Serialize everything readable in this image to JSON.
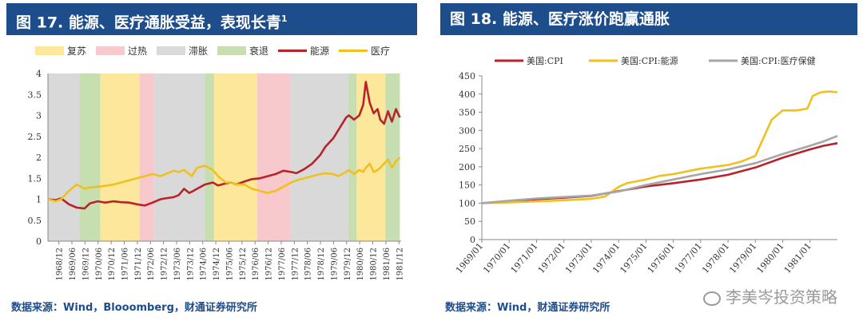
{
  "left": {
    "title": "图 17. 能源、医疗通胀受益，表现长青",
    "title_sup": "1",
    "source": "数据来源：Wind，Blooomberg，财通证券研究所",
    "chart_data": {
      "type": "line",
      "legend_position": "top",
      "legend": [
        {
          "name": "复苏",
          "color": "#fde79a",
          "kind": "band"
        },
        {
          "name": "过热",
          "color": "#f7c8cc",
          "kind": "band"
        },
        {
          "name": "滞胀",
          "color": "#d9d9d9",
          "kind": "band"
        },
        {
          "name": "衰退",
          "color": "#c7deb1",
          "kind": "band"
        },
        {
          "name": "能源",
          "color": "#b8232a",
          "kind": "line"
        },
        {
          "name": "医疗",
          "color": "#f0c020",
          "kind": "line"
        }
      ],
      "x_range": [
        1968.5,
        1982.0
      ],
      "ylim": [
        0,
        4
      ],
      "y_ticks": [
        "0",
        "0.5",
        "1",
        "1.5",
        "2",
        "2.5",
        "3",
        "3.5",
        "4"
      ],
      "x_ticks": [
        "1968/12",
        "1969/06",
        "1969/12",
        "1970/06",
        "1970/12",
        "1971/06",
        "1971/12",
        "1972/06",
        "1972/12",
        "1973/06",
        "1973/12",
        "1974/06",
        "1974/12",
        "1975/06",
        "1975/12",
        "1976/06",
        "1976/12",
        "1977/06",
        "1977/12",
        "1978/06",
        "1978/12",
        "1979/06",
        "1979/12",
        "1980/06",
        "1980/12",
        "1981/06",
        "1981/12"
      ],
      "phases": [
        {
          "phase": "滞胀",
          "start": 1968.5,
          "end": 1969.7
        },
        {
          "phase": "衰退",
          "start": 1969.7,
          "end": 1970.5
        },
        {
          "phase": "复苏",
          "start": 1970.5,
          "end": 1972.0
        },
        {
          "phase": "过热",
          "start": 1972.0,
          "end": 1972.55
        },
        {
          "phase": "滞胀",
          "start": 1972.55,
          "end": 1974.5
        },
        {
          "phase": "衰退",
          "start": 1974.5,
          "end": 1974.85
        },
        {
          "phase": "复苏",
          "start": 1974.85,
          "end": 1976.5
        },
        {
          "phase": "过热",
          "start": 1976.5,
          "end": 1977.75
        },
        {
          "phase": "滞胀",
          "start": 1977.75,
          "end": 1980.0
        },
        {
          "phase": "衰退",
          "start": 1980.0,
          "end": 1980.3
        },
        {
          "phase": "复苏",
          "start": 1980.3,
          "end": 1981.4
        },
        {
          "phase": "衰退",
          "start": 1981.4,
          "end": 1981.95
        }
      ],
      "series": [
        {
          "name": "能源",
          "color": "#b8232a",
          "x": [
            1968.5,
            1968.8,
            1969.0,
            1969.3,
            1969.6,
            1969.9,
            1970.1,
            1970.4,
            1970.7,
            1971.0,
            1971.3,
            1971.6,
            1971.9,
            1972.2,
            1972.5,
            1972.8,
            1973.0,
            1973.3,
            1973.5,
            1973.7,
            1973.9,
            1974.0,
            1974.2,
            1974.5,
            1974.8,
            1975.0,
            1975.3,
            1975.5,
            1975.7,
            1976.0,
            1976.3,
            1976.6,
            1976.9,
            1977.2,
            1977.5,
            1977.8,
            1978.0,
            1978.3,
            1978.6,
            1978.9,
            1979.1,
            1979.4,
            1979.6,
            1979.9,
            1980.0,
            1980.2,
            1980.4,
            1980.55,
            1980.65,
            1980.8,
            1980.95,
            1981.1,
            1981.2,
            1981.35,
            1981.5,
            1981.65,
            1981.8,
            1981.95
          ],
          "y": [
            1.0,
            0.98,
            1.02,
            0.88,
            0.8,
            0.78,
            0.9,
            0.95,
            0.92,
            0.95,
            0.93,
            0.92,
            0.88,
            0.85,
            0.92,
            1.0,
            1.02,
            1.05,
            1.1,
            1.25,
            1.15,
            1.18,
            1.25,
            1.35,
            1.4,
            1.33,
            1.38,
            1.4,
            1.35,
            1.42,
            1.48,
            1.5,
            1.55,
            1.6,
            1.68,
            1.65,
            1.62,
            1.72,
            1.85,
            2.05,
            2.25,
            2.45,
            2.65,
            2.95,
            3.0,
            2.9,
            3.0,
            3.25,
            3.8,
            3.3,
            3.05,
            3.15,
            2.9,
            2.8,
            3.1,
            2.85,
            3.15,
            2.95
          ]
        },
        {
          "name": "医疗",
          "color": "#f0c020",
          "x": [
            1968.5,
            1968.8,
            1969.0,
            1969.3,
            1969.6,
            1969.9,
            1970.1,
            1970.4,
            1970.7,
            1971.0,
            1971.3,
            1971.6,
            1971.9,
            1972.2,
            1972.5,
            1972.8,
            1973.0,
            1973.3,
            1973.5,
            1973.7,
            1973.9,
            1974.0,
            1974.2,
            1974.5,
            1974.8,
            1975.0,
            1975.3,
            1975.5,
            1975.7,
            1976.0,
            1976.3,
            1976.6,
            1976.9,
            1977.2,
            1977.5,
            1977.8,
            1978.0,
            1978.3,
            1978.6,
            1978.9,
            1979.1,
            1979.4,
            1979.6,
            1979.9,
            1980.0,
            1980.2,
            1980.4,
            1980.55,
            1980.65,
            1980.8,
            1980.95,
            1981.1,
            1981.2,
            1981.35,
            1981.5,
            1981.65,
            1981.8,
            1981.95
          ],
          "y": [
            1.0,
            0.95,
            1.0,
            1.2,
            1.35,
            1.25,
            1.28,
            1.3,
            1.32,
            1.35,
            1.4,
            1.45,
            1.5,
            1.55,
            1.6,
            1.55,
            1.6,
            1.68,
            1.65,
            1.7,
            1.6,
            1.55,
            1.75,
            1.8,
            1.7,
            1.55,
            1.4,
            1.4,
            1.35,
            1.35,
            1.25,
            1.2,
            1.15,
            1.2,
            1.3,
            1.4,
            1.45,
            1.5,
            1.55,
            1.6,
            1.62,
            1.6,
            1.55,
            1.65,
            1.7,
            1.6,
            1.7,
            1.65,
            1.75,
            1.85,
            1.65,
            1.7,
            1.75,
            1.85,
            1.95,
            1.75,
            1.9,
            2.0
          ]
        }
      ]
    }
  },
  "right": {
    "title": "图 18. 能源、医疗涨价跑赢通胀",
    "source": "数据来源：Wind，财通证券研究所",
    "watermark": "李美岑投资策略",
    "chart_data": {
      "type": "line",
      "legend_position": "top",
      "x_range": [
        1969.0,
        1982.0
      ],
      "ylim": [
        0,
        450
      ],
      "y_ticks": [
        "0",
        "50",
        "100",
        "150",
        "200",
        "250",
        "300",
        "350",
        "400",
        "450"
      ],
      "x_ticks": [
        "1969/01",
        "1970/01",
        "1971/01",
        "1972/01",
        "1973/01",
        "1974/01",
        "1975/01",
        "1976/01",
        "1977/01",
        "1978/01",
        "1979/01",
        "1980/01",
        "1981/01"
      ],
      "series": [
        {
          "name": "美国:CPI",
          "color": "#b8232a",
          "x": [
            1969,
            1970,
            1971,
            1972,
            1973,
            1974,
            1975,
            1976,
            1977,
            1978,
            1979,
            1980,
            1981,
            1981.5,
            1982
          ],
          "y": [
            100,
            105,
            111,
            115,
            120,
            133,
            146,
            155,
            165,
            178,
            198,
            225,
            248,
            258,
            265
          ]
        },
        {
          "name": "美国:CPI:能源",
          "color": "#f0c020",
          "x": [
            1969,
            1970,
            1971,
            1972,
            1973,
            1973.5,
            1974,
            1974.3,
            1975,
            1975.5,
            1976,
            1977,
            1978,
            1978.5,
            1979,
            1979.3,
            1979.6,
            1980,
            1980.5,
            1980.9,
            1981.1,
            1981.4,
            1981.7,
            1982
          ],
          "y": [
            100,
            102,
            105,
            108,
            112,
            118,
            145,
            155,
            165,
            175,
            180,
            195,
            205,
            215,
            230,
            280,
            330,
            355,
            355,
            360,
            395,
            405,
            407,
            405
          ]
        },
        {
          "name": "美国:CPI:医疗保健",
          "color": "#a6a6a6",
          "x": [
            1969,
            1970,
            1971,
            1972,
            1973,
            1974,
            1975,
            1976,
            1977,
            1978,
            1979,
            1980,
            1981,
            1981.5,
            1982
          ],
          "y": [
            100,
            107,
            113,
            117,
            121,
            132,
            150,
            165,
            180,
            193,
            210,
            235,
            258,
            270,
            285
          ]
        }
      ]
    }
  }
}
